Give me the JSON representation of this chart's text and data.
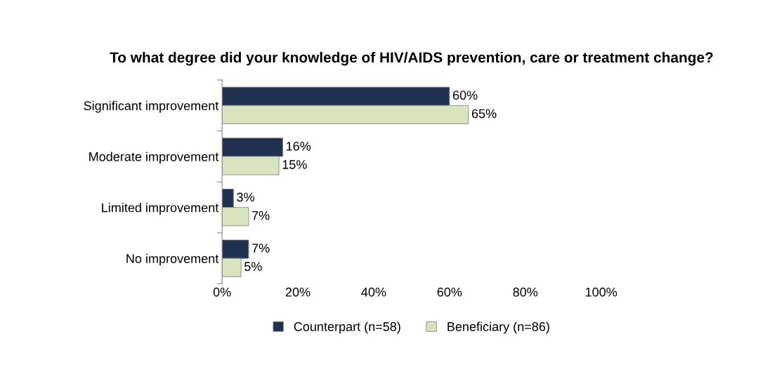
{
  "chart_data": {
    "type": "bar",
    "orientation": "horizontal",
    "title": "To what degree did your knowledge of HIV/AIDS prevention, care or treatment change?",
    "categories": [
      "Significant improvement",
      "Moderate improvement",
      "Limited improvement",
      "No improvement"
    ],
    "series": [
      {
        "name": "Counterpart (n=58)",
        "color": "#1f3050",
        "values": [
          60,
          16,
          3,
          7
        ],
        "value_labels": [
          "60%",
          "16%",
          "3%",
          "7%"
        ]
      },
      {
        "name": "Beneficiary (n=86)",
        "color": "#d7e4bd",
        "values": [
          65,
          15,
          7,
          5
        ],
        "value_labels": [
          "65%",
          "15%",
          "7%",
          "5%"
        ]
      }
    ],
    "xlim": [
      0,
      100
    ],
    "xticks": [
      {
        "value": 0,
        "label": "0%"
      },
      {
        "value": 20,
        "label": "20%"
      },
      {
        "value": 40,
        "label": "40%"
      },
      {
        "value": 60,
        "label": "60%"
      },
      {
        "value": 80,
        "label": "80%"
      },
      {
        "value": 100,
        "label": "100%"
      }
    ],
    "grid": false,
    "legend": "bottom"
  }
}
